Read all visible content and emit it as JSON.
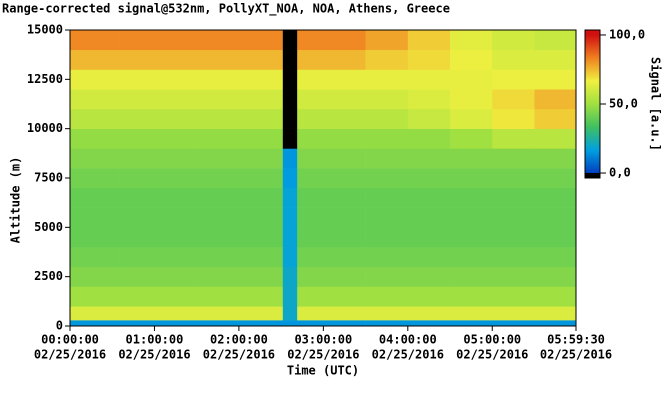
{
  "chart_data": {
    "type": "heatmap",
    "title": "Range-corrected signal@532nm, PollyXT_NOA, NOA, Athens, Greece",
    "x_label": "Time (UTC)",
    "y_label": "Altitude (m)",
    "colorbar_label": "Signal [a.u.]",
    "xlim": [
      0,
      5.9917
    ],
    "ylim": [
      0,
      15000
    ],
    "xticks": [
      {
        "value": 0,
        "label": "00:00:00"
      },
      {
        "value": 1,
        "label": "01:00:00"
      },
      {
        "value": 2,
        "label": "02:00:00"
      },
      {
        "value": 3,
        "label": "03:00:00"
      },
      {
        "value": 4,
        "label": "04:00:00"
      },
      {
        "value": 5,
        "label": "05:00:00"
      },
      {
        "value": 5.9917,
        "label": "05:59:30"
      }
    ],
    "xtick_dates": [
      "02/25/2016",
      "02/25/2016",
      "02/25/2016",
      "02/25/2016",
      "02/25/2016",
      "02/25/2016",
      "02/25/2016"
    ],
    "yticks": [
      0,
      2500,
      5000,
      7500,
      10000,
      12500,
      15000
    ],
    "x_bins": [
      0,
      0.5,
      1,
      1.5,
      2,
      2.52,
      2.69,
      3,
      3.5,
      4,
      4.5,
      5,
      5.5,
      5.9917
    ],
    "y_bins": [
      0,
      300,
      1000,
      2000,
      3000,
      4000,
      5000,
      6000,
      7000,
      8000,
      9000,
      10000,
      11000,
      12000,
      13000,
      14000,
      15000
    ],
    "z": [
      [
        15,
        15,
        15,
        15,
        15,
        15,
        15,
        15,
        15,
        15,
        15,
        15,
        15
      ],
      [
        62,
        62,
        62,
        62,
        62,
        20,
        62,
        62,
        62,
        62,
        62,
        62,
        62
      ],
      [
        50,
        50,
        50,
        50,
        50,
        20,
        50,
        50,
        50,
        50,
        50,
        50,
        50
      ],
      [
        45,
        45,
        45,
        45,
        45,
        20,
        45,
        45,
        45,
        45,
        45,
        45,
        45
      ],
      [
        42,
        42,
        42,
        42,
        42,
        18,
        42,
        42,
        42,
        42,
        42,
        42,
        42
      ],
      [
        40,
        40,
        40,
        40,
        40,
        18,
        40,
        40,
        40,
        40,
        40,
        40,
        40
      ],
      [
        40,
        40,
        40,
        40,
        40,
        18,
        40,
        40,
        40,
        40,
        40,
        40,
        40
      ],
      [
        40,
        40,
        40,
        40,
        40,
        18,
        40,
        40,
        40,
        40,
        40,
        40,
        40
      ],
      [
        42,
        42,
        42,
        42,
        42,
        16,
        42,
        42,
        42,
        42,
        42,
        42,
        42
      ],
      [
        45,
        45,
        45,
        45,
        45,
        15,
        45,
        45,
        45,
        45,
        45,
        45,
        45
      ],
      [
        48,
        48,
        48,
        48,
        48,
        -3,
        48,
        48,
        48,
        48,
        50,
        55,
        55
      ],
      [
        55,
        55,
        55,
        55,
        55,
        -3,
        55,
        55,
        55,
        58,
        62,
        68,
        72
      ],
      [
        60,
        60,
        60,
        60,
        60,
        -3,
        60,
        60,
        60,
        62,
        65,
        70,
        75
      ],
      [
        65,
        65,
        65,
        65,
        65,
        -3,
        65,
        65,
        65,
        65,
        65,
        66,
        66
      ],
      [
        75,
        75,
        75,
        75,
        75,
        -3,
        75,
        75,
        72,
        70,
        66,
        62,
        62
      ],
      [
        82,
        82,
        82,
        82,
        82,
        -3,
        82,
        82,
        78,
        72,
        64,
        60,
        58
      ]
    ],
    "clim": [
      -3.6,
      103.6
    ],
    "cticks": [
      {
        "value": 0,
        "label": "0,0"
      },
      {
        "value": 50,
        "label": "50,0"
      },
      {
        "value": 100,
        "label": "100,0"
      }
    ],
    "colormap": [
      "#0040c0",
      "#00a0e0",
      "#40c060",
      "#a0e040",
      "#f0f040",
      "#f08020",
      "#d01010"
    ],
    "under_color": "#000000"
  }
}
